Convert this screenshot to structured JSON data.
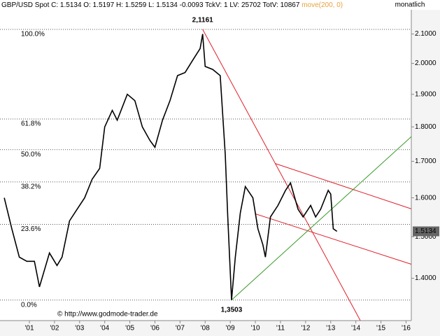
{
  "chart_data": {
    "type": "line",
    "header": {
      "symbol": "GBP/USD Spot",
      "quote": "C: 1.5134 O: 1.5197 H: 1.5259 L: 1.5134 -0.0093 TckV: 1 LV: 25702 TotV: 10867",
      "indicator": "move(200, 0)",
      "indicator_color": "#e8a23c",
      "period": "monatlich"
    },
    "log_scale": true,
    "xlim": [
      1999.83,
      2016.21
    ],
    "ylim": [
      1.305,
      2.222
    ],
    "xticks": [
      {
        "value": 2001,
        "label": "'01"
      },
      {
        "value": 2002,
        "label": "'02"
      },
      {
        "value": 2003,
        "label": "'03"
      },
      {
        "value": 2004,
        "label": "'04"
      },
      {
        "value": 2005,
        "label": "'05"
      },
      {
        "value": 2006,
        "label": "'06"
      },
      {
        "value": 2007,
        "label": "'07"
      },
      {
        "value": 2008,
        "label": "'08"
      },
      {
        "value": 2009,
        "label": "'09"
      },
      {
        "value": 2010,
        "label": "'10"
      },
      {
        "value": 2011,
        "label": "'11"
      },
      {
        "value": 2012,
        "label": "'12"
      },
      {
        "value": 2013,
        "label": "'13"
      },
      {
        "value": 2014,
        "label": "'14"
      },
      {
        "value": 2015,
        "label": "'15"
      },
      {
        "value": 2016,
        "label": "'16"
      }
    ],
    "yticks": [
      {
        "value": 1.4,
        "label": "1.4000"
      },
      {
        "value": 1.5,
        "label": "1.5000"
      },
      {
        "value": 1.6,
        "label": "1.6000"
      },
      {
        "value": 1.7,
        "label": "1.7000"
      },
      {
        "value": 1.8,
        "label": "1.8000"
      },
      {
        "value": 1.9,
        "label": "1.9000"
      },
      {
        "value": 2.0,
        "label": "2.0000"
      },
      {
        "value": 2.1,
        "label": "2.1000"
      }
    ],
    "x": [
      2000.0,
      2000.3,
      2000.6,
      2000.9,
      2001.2,
      2001.4,
      2001.8,
      2002.1,
      2002.3,
      2002.6,
      2002.9,
      2003.2,
      2003.5,
      2003.8,
      2004.0,
      2004.3,
      2004.5,
      2004.9,
      2005.2,
      2005.5,
      2005.8,
      2006.0,
      2006.3,
      2006.6,
      2006.9,
      2007.2,
      2007.5,
      2007.8,
      2007.9,
      2008.0,
      2008.3,
      2008.6,
      2008.8,
      2008.9,
      2009.05,
      2009.2,
      2009.4,
      2009.6,
      2009.9,
      2010.1,
      2010.3,
      2010.4,
      2010.6,
      2010.9,
      2011.2,
      2011.4,
      2011.7,
      2011.9,
      2012.2,
      2012.4,
      2012.6,
      2012.9,
      2013.0,
      2013.1,
      2013.25
    ],
    "series": [
      {
        "name": "GBP/USD Spot",
        "color": "#000000",
        "values": [
          1.6,
          1.52,
          1.45,
          1.44,
          1.44,
          1.38,
          1.46,
          1.43,
          1.45,
          1.54,
          1.57,
          1.6,
          1.65,
          1.68,
          1.8,
          1.85,
          1.82,
          1.9,
          1.88,
          1.8,
          1.76,
          1.74,
          1.82,
          1.88,
          1.96,
          1.97,
          2.01,
          2.05,
          2.1,
          1.99,
          1.98,
          1.96,
          1.72,
          1.55,
          1.3503,
          1.45,
          1.56,
          1.63,
          1.6,
          1.52,
          1.48,
          1.45,
          1.55,
          1.58,
          1.62,
          1.64,
          1.57,
          1.55,
          1.58,
          1.55,
          1.57,
          1.62,
          1.61,
          1.52,
          1.5134
        ]
      }
    ],
    "last_price": "1.5134",
    "fib_levels": [
      {
        "label": "100.0%",
        "value": 2.1161
      },
      {
        "label": "61.8%",
        "value": 1.8236
      },
      {
        "label": "50.0%",
        "value": 1.7332
      },
      {
        "label": "38.2%",
        "value": 1.6428
      },
      {
        "label": "23.6%",
        "value": 1.531
      },
      {
        "label": "0.0%",
        "value": 1.3503
      }
    ],
    "trend_lines": [
      {
        "color": "#e0202a",
        "x": [
          2007.9,
          2014.18
        ],
        "y": [
          2.1161,
          1.305
        ]
      },
      {
        "color": "#e0202a",
        "x": [
          2010.78,
          2016.21
        ],
        "y": [
          1.694,
          1.571
        ]
      },
      {
        "color": "#e0202a",
        "x": [
          2010.0,
          2016.21
        ],
        "y": [
          1.558,
          1.433
        ]
      },
      {
        "color": "#3a9a2a",
        "x": [
          2009.05,
          2016.21
        ],
        "y": [
          1.3503,
          1.771
        ]
      }
    ],
    "annotations": [
      {
        "text": "2,1161",
        "x": 2007.9,
        "y": 2.1161
      },
      {
        "text": "1,3503",
        "x": 2009.05,
        "y": 1.3503
      }
    ],
    "copyright": "© http://www.godmode-trader.de"
  }
}
